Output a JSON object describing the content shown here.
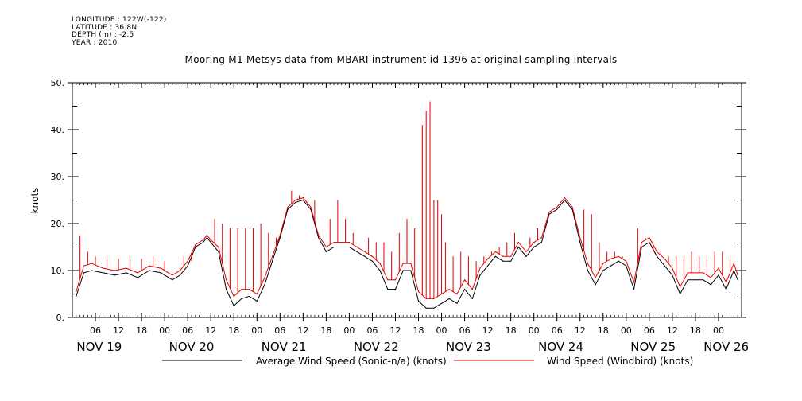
{
  "metadata": {
    "longitude": "LONGITUDE : 122W(-122)",
    "latitude": "LATITUDE : 36.8N",
    "depth": "DEPTH (m) : -2.5",
    "year": "YEAR : 2010"
  },
  "chart_data": {
    "type": "line",
    "title": "Mooring M1 Metsys data from MBARI instrument id 1396 at original sampling intervals",
    "xlabel": "",
    "ylabel": "knots",
    "ylim": [
      0,
      50
    ],
    "xlim_hours": [
      0,
      174
    ],
    "y_ticks": [
      "0.",
      "10.",
      "20.",
      "30.",
      "40.",
      "50."
    ],
    "x_hour_labels": [
      "06",
      "12",
      "18",
      "00",
      "06",
      "12",
      "18",
      "00",
      "06",
      "12",
      "18",
      "00",
      "06",
      "12",
      "18",
      "00",
      "06",
      "12",
      "18",
      "00",
      "06",
      "12",
      "18",
      "00",
      "06",
      "12",
      "18",
      "00"
    ],
    "x_day_labels": [
      "NOV 19",
      "NOV 20",
      "NOV 21",
      "NOV 22",
      "NOV 23",
      "NOV 24",
      "NOV 25",
      "NOV 26"
    ],
    "x_axis_note": "hours since NOV 19 00:00 is NOT used; x values are hour-of-record from the start of the plotted window (first tick 06 on NOV 19)",
    "series": [
      {
        "name": "Average Wind Speed (Sonic-n/a) (knots)",
        "color": "#000000",
        "x": [
          1,
          3,
          5,
          8,
          11,
          14,
          17,
          20,
          23,
          26,
          28,
          30,
          32,
          34,
          35,
          36,
          38,
          40,
          42,
          44,
          46,
          48,
          50,
          52,
          54,
          56,
          58,
          60,
          62,
          64,
          66,
          68,
          70,
          72,
          74,
          76,
          78,
          80,
          82,
          84,
          86,
          88,
          90,
          92,
          94,
          96,
          98,
          100,
          102,
          104,
          106,
          108,
          110,
          112,
          114,
          116,
          118,
          120,
          122,
          124,
          126,
          128,
          130,
          132,
          134,
          136,
          138,
          140,
          142,
          144,
          146,
          148,
          150,
          152,
          154,
          156,
          158,
          160,
          162,
          164,
          166,
          168,
          170,
          172,
          173
        ],
        "values": [
          4.5,
          9.5,
          10,
          9.5,
          9,
          9.5,
          8.5,
          10,
          9.5,
          8,
          9,
          11,
          15,
          16,
          17,
          16,
          14,
          6,
          2.5,
          4,
          4.5,
          3.5,
          7,
          12,
          17,
          23,
          24.5,
          25,
          23,
          17,
          14,
          15,
          15,
          15,
          14,
          13,
          12,
          10,
          6,
          6,
          10,
          10,
          3.5,
          2,
          2,
          3,
          4,
          3,
          6,
          4,
          9,
          11,
          13,
          12,
          12,
          15,
          13,
          15,
          16,
          22,
          23,
          25,
          23,
          16,
          10,
          7,
          10,
          11,
          12,
          11,
          6,
          15,
          16,
          13,
          11,
          9,
          5,
          8,
          8,
          8,
          7,
          9,
          6,
          10,
          8
        ]
      },
      {
        "name": "Wind Speed (Windbird) (knots)",
        "color": "#e00000",
        "x": [
          1,
          3,
          5,
          8,
          11,
          14,
          17,
          20,
          23,
          26,
          28,
          30,
          32,
          34,
          35,
          36,
          38,
          40,
          42,
          44,
          46,
          48,
          50,
          52,
          54,
          56,
          58,
          60,
          62,
          64,
          66,
          68,
          70,
          72,
          74,
          76,
          78,
          80,
          82,
          84,
          86,
          88,
          90,
          92,
          94,
          96,
          98,
          100,
          102,
          104,
          106,
          108,
          110,
          112,
          114,
          116,
          118,
          120,
          122,
          124,
          126,
          128,
          130,
          132,
          134,
          136,
          138,
          140,
          142,
          144,
          146,
          148,
          150,
          152,
          154,
          156,
          158,
          160,
          162,
          164,
          166,
          168,
          170,
          172,
          173
        ],
        "values": [
          5.5,
          11,
          11.5,
          10.5,
          10,
          10.5,
          9.5,
          11,
          10.5,
          9,
          10,
          12,
          15.5,
          16.5,
          17.5,
          16.5,
          15,
          8,
          4.5,
          6,
          6,
          5,
          8.5,
          13,
          17.5,
          23.5,
          25,
          25.5,
          23.5,
          17.5,
          15,
          16,
          16,
          16,
          15,
          14,
          13,
          11.5,
          8,
          8,
          11.5,
          11.5,
          5.5,
          4,
          4,
          5,
          6,
          5,
          8,
          6,
          10.5,
          12.5,
          14,
          13,
          13,
          16,
          14,
          16,
          17,
          22.5,
          23.5,
          25.5,
          23.5,
          17,
          11.5,
          8.5,
          11.5,
          12.5,
          13,
          12,
          7.5,
          16,
          17,
          14,
          12.5,
          10.5,
          6.5,
          9.5,
          9.5,
          9.5,
          8.5,
          10.5,
          7.5,
          11.5,
          9
        ]
      }
    ],
    "spikes": {
      "series": "Wind Speed (Windbird) (knots)",
      "x": [
        2,
        4,
        6,
        9,
        12,
        15,
        18,
        21,
        24,
        29,
        31,
        37,
        39,
        41,
        43,
        45,
        47,
        49,
        51,
        53,
        57,
        59,
        63,
        67,
        69,
        71,
        73,
        77,
        79,
        81,
        83,
        85,
        87,
        89,
        91,
        92,
        93,
        94,
        95,
        96,
        97,
        99,
        101,
        103,
        105,
        107,
        109,
        111,
        113,
        115,
        117,
        119,
        121,
        133,
        135,
        137,
        139,
        141,
        143,
        147,
        149,
        151,
        153,
        155,
        157,
        159,
        161,
        163,
        165,
        167,
        169,
        171
      ],
      "values": [
        17.5,
        14,
        13,
        13,
        12.5,
        13,
        12.5,
        13,
        12,
        13,
        12,
        21,
        20,
        19,
        19,
        19,
        19,
        20,
        18,
        17,
        27,
        26,
        25,
        21,
        25,
        21,
        18,
        17,
        16,
        16,
        14,
        18,
        21,
        19,
        41,
        44,
        46,
        25,
        25,
        22,
        16,
        13,
        14,
        13,
        12,
        13,
        14,
        15,
        16,
        18,
        15,
        17,
        19,
        23,
        22,
        16,
        14,
        14,
        13,
        19,
        17,
        14,
        14,
        13,
        13,
        13,
        14,
        13,
        13,
        14,
        14,
        13
      ]
    },
    "legend_placement": "bottom-center",
    "grid": false
  }
}
